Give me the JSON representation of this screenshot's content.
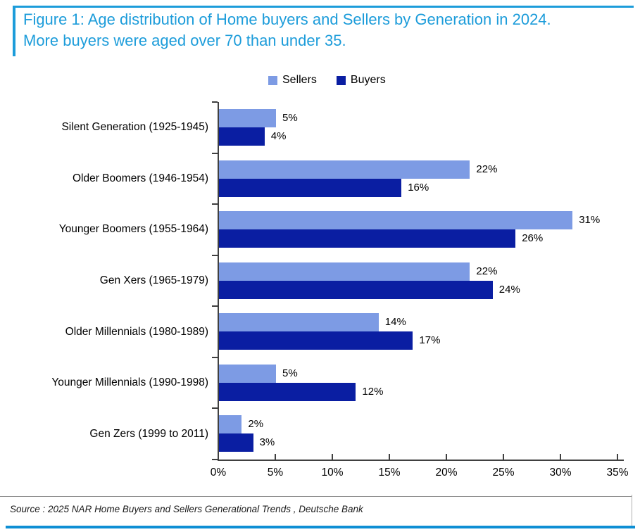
{
  "colors": {
    "accent": "#1C9CDA",
    "bottom_rule": "#0E8FD4",
    "axis": "#404040",
    "sellers": "#7D9BE4",
    "buyers": "#0A1EA2"
  },
  "header": {
    "title_line1": "Figure 1: Age distribution of Home buyers and Sellers by Generation in 2024.",
    "title_line2": "More buyers were aged over 70 than under 35."
  },
  "chart_data": {
    "type": "bar",
    "orientation": "horizontal",
    "title": "Figure 1: Age distribution of Home buyers and Sellers by Generation in 2024. More buyers were aged over 70 than under 35.",
    "categories": [
      "Silent Generation (1925-1945)",
      "Older Boomers (1946-1954)",
      "Younger Boomers (1955-1964)",
      "Gen Xers (1965-1979)",
      "Older Millennials (1980-1989)",
      "Younger Millennials (1990-1998)",
      "Gen Zers (1999 to 2011)"
    ],
    "series": [
      {
        "name": "Sellers",
        "color": "#7D9BE4",
        "values": [
          5,
          22,
          31,
          22,
          14,
          5,
          2
        ]
      },
      {
        "name": "Buyers",
        "color": "#0A1EA2",
        "values": [
          4,
          16,
          26,
          24,
          17,
          12,
          3
        ]
      }
    ],
    "value_suffix": "%",
    "xlim": [
      0,
      35
    ],
    "x_tick_step": 5,
    "x_ticks": [
      "0%",
      "5%",
      "10%",
      "15%",
      "20%",
      "25%",
      "30%",
      "35%"
    ],
    "legend_position": "top",
    "grid": false
  },
  "footer": {
    "source": "Source : 2025 NAR Home Buyers and Sellers Generational Trends , Deutsche Bank"
  }
}
